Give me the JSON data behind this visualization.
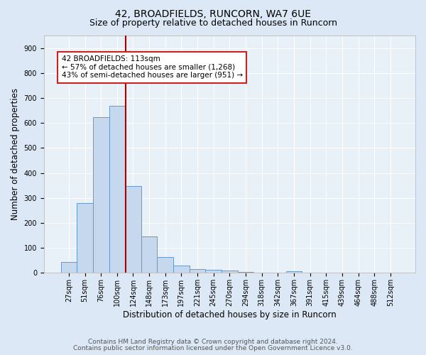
{
  "title": "42, BROADFIELDS, RUNCORN, WA7 6UE",
  "subtitle": "Size of property relative to detached houses in Runcorn",
  "xlabel": "Distribution of detached houses by size in Runcorn",
  "ylabel": "Number of detached properties",
  "footer_line1": "Contains HM Land Registry data © Crown copyright and database right 2024.",
  "footer_line2": "Contains public sector information licensed under the Open Government Licence v3.0.",
  "bin_labels": [
    "27sqm",
    "51sqm",
    "76sqm",
    "100sqm",
    "124sqm",
    "148sqm",
    "173sqm",
    "197sqm",
    "221sqm",
    "245sqm",
    "270sqm",
    "294sqm",
    "318sqm",
    "342sqm",
    "367sqm",
    "391sqm",
    "415sqm",
    "439sqm",
    "464sqm",
    "488sqm",
    "512sqm"
  ],
  "bar_values": [
    43,
    280,
    622,
    670,
    348,
    145,
    65,
    30,
    16,
    12,
    10,
    5,
    0,
    0,
    8,
    0,
    0,
    0,
    0,
    0,
    0
  ],
  "bar_color": "#c5d8ee",
  "bar_edge_color": "#6699cc",
  "vline_bin_index": 3.55,
  "vline_color": "#aa0000",
  "annotation_line1": "42 BROADFIELDS: 113sqm",
  "annotation_line2": "← 57% of detached houses are smaller (1,268)",
  "annotation_line3": "43% of semi-detached houses are larger (951) →",
  "annotation_box_color": "#ffffff",
  "annotation_box_edge": "#cc2222",
  "ylim": [
    0,
    950
  ],
  "yticks": [
    0,
    100,
    200,
    300,
    400,
    500,
    600,
    700,
    800,
    900
  ],
  "bg_color": "#dce8f5",
  "plot_bg_color": "#e8f0f8",
  "grid_color": "#ffffff",
  "title_fontsize": 10,
  "subtitle_fontsize": 9,
  "axis_label_fontsize": 8.5,
  "tick_fontsize": 7,
  "footer_fontsize": 6.5
}
